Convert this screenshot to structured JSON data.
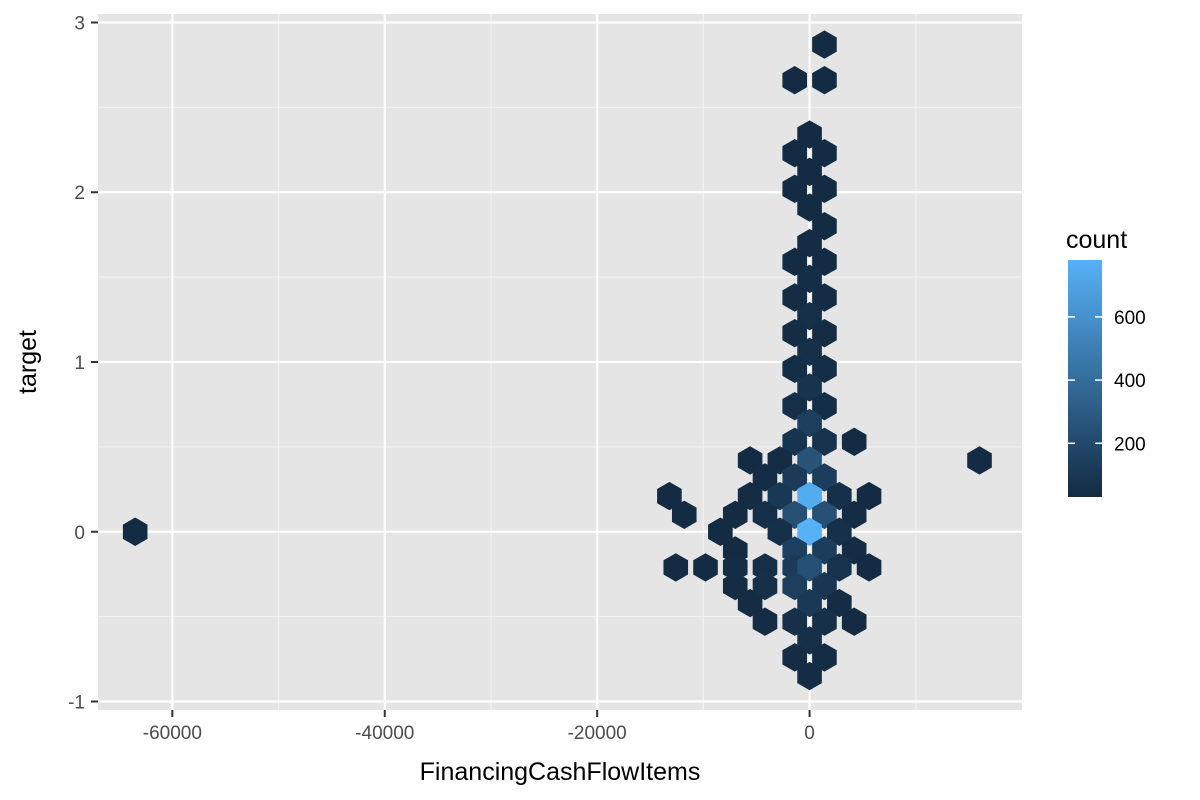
{
  "chart_data": {
    "type": "hexbin",
    "title": "",
    "xlabel": "FinancingCashFlowItems",
    "ylabel": "target",
    "xlim": [
      -67000,
      20000
    ],
    "ylim": [
      -1.05,
      3.05
    ],
    "x_ticks": [
      -60000,
      -40000,
      -20000,
      0
    ],
    "x_tick_labels": [
      "-60000",
      "-40000",
      "-20000",
      "0"
    ],
    "x_minor_ticks": [
      -50000,
      -30000,
      -10000,
      10000
    ],
    "y_ticks": [
      -1,
      0,
      1,
      2,
      3
    ],
    "y_tick_labels": [
      "-1",
      "0",
      "1",
      "2",
      "3"
    ],
    "y_minor_ticks": [
      -0.5,
      0.5,
      1.5,
      2.5
    ],
    "grid": true,
    "panel_background": "#e5e5e5",
    "legend": {
      "title": "count",
      "position": "right",
      "min": 30,
      "max": 780,
      "ticks": [
        200,
        400,
        600
      ],
      "tick_labels": [
        "200",
        "400",
        "600"
      ],
      "color_low": "#132b43",
      "color_high": "#56b1f7"
    },
    "hexagons": [
      {
        "x": 1400,
        "y": 2.87,
        "count": 30
      },
      {
        "x": -1400,
        "y": 2.66,
        "count": 30
      },
      {
        "x": 1400,
        "y": 2.66,
        "count": 30
      },
      {
        "x": 0,
        "y": 2.34,
        "count": 35
      },
      {
        "x": -1400,
        "y": 2.23,
        "count": 35
      },
      {
        "x": 1400,
        "y": 2.23,
        "count": 35
      },
      {
        "x": 0,
        "y": 2.12,
        "count": 35
      },
      {
        "x": -1400,
        "y": 2.02,
        "count": 35
      },
      {
        "x": 1400,
        "y": 2.02,
        "count": 35
      },
      {
        "x": 0,
        "y": 1.91,
        "count": 35
      },
      {
        "x": 1400,
        "y": 1.8,
        "count": 35
      },
      {
        "x": 0,
        "y": 1.7,
        "count": 40
      },
      {
        "x": -1400,
        "y": 1.59,
        "count": 35
      },
      {
        "x": 1400,
        "y": 1.59,
        "count": 35
      },
      {
        "x": 0,
        "y": 1.49,
        "count": 45
      },
      {
        "x": -1400,
        "y": 1.38,
        "count": 40
      },
      {
        "x": 1400,
        "y": 1.38,
        "count": 40
      },
      {
        "x": 0,
        "y": 1.27,
        "count": 50
      },
      {
        "x": -1400,
        "y": 1.17,
        "count": 40
      },
      {
        "x": 1400,
        "y": 1.17,
        "count": 40
      },
      {
        "x": 0,
        "y": 1.06,
        "count": 60
      },
      {
        "x": -1400,
        "y": 0.96,
        "count": 45
      },
      {
        "x": 1400,
        "y": 0.96,
        "count": 45
      },
      {
        "x": 0,
        "y": 0.85,
        "count": 80
      },
      {
        "x": -1400,
        "y": 0.74,
        "count": 50
      },
      {
        "x": 1400,
        "y": 0.74,
        "count": 45
      },
      {
        "x": 0,
        "y": 0.64,
        "count": 140
      },
      {
        "x": -1400,
        "y": 0.53,
        "count": 80
      },
      {
        "x": 1400,
        "y": 0.53,
        "count": 70
      },
      {
        "x": 4200,
        "y": 0.53,
        "count": 30
      },
      {
        "x": -5600,
        "y": 0.42,
        "count": 30
      },
      {
        "x": -2800,
        "y": 0.42,
        "count": 40
      },
      {
        "x": 0,
        "y": 0.42,
        "count": 260
      },
      {
        "x": 16000,
        "y": 0.42,
        "count": 30
      },
      {
        "x": -4200,
        "y": 0.32,
        "count": 40
      },
      {
        "x": -1400,
        "y": 0.32,
        "count": 120
      },
      {
        "x": 1400,
        "y": 0.32,
        "count": 130
      },
      {
        "x": -13200,
        "y": 0.21,
        "count": 30
      },
      {
        "x": -5600,
        "y": 0.21,
        "count": 40
      },
      {
        "x": -2800,
        "y": 0.21,
        "count": 100
      },
      {
        "x": 0,
        "y": 0.21,
        "count": 750
      },
      {
        "x": 2800,
        "y": 0.21,
        "count": 60
      },
      {
        "x": 5600,
        "y": 0.21,
        "count": 30
      },
      {
        "x": -11800,
        "y": 0.1,
        "count": 30
      },
      {
        "x": -7000,
        "y": 0.1,
        "count": 30
      },
      {
        "x": -4200,
        "y": 0.1,
        "count": 50
      },
      {
        "x": -1400,
        "y": 0.1,
        "count": 230
      },
      {
        "x": 1400,
        "y": 0.1,
        "count": 240
      },
      {
        "x": 4200,
        "y": 0.1,
        "count": 40
      },
      {
        "x": -63500,
        "y": 0.0,
        "count": 30
      },
      {
        "x": -8400,
        "y": 0.0,
        "count": 30
      },
      {
        "x": -2800,
        "y": 0.0,
        "count": 60
      },
      {
        "x": 0,
        "y": 0.0,
        "count": 780
      },
      {
        "x": 2800,
        "y": 0.0,
        "count": 60
      },
      {
        "x": -7000,
        "y": -0.11,
        "count": 30
      },
      {
        "x": -1400,
        "y": -0.11,
        "count": 150
      },
      {
        "x": 1400,
        "y": -0.11,
        "count": 130
      },
      {
        "x": 4200,
        "y": -0.11,
        "count": 40
      },
      {
        "x": -12600,
        "y": -0.21,
        "count": 30
      },
      {
        "x": -9800,
        "y": -0.21,
        "count": 30
      },
      {
        "x": -7000,
        "y": -0.21,
        "count": 40
      },
      {
        "x": -4200,
        "y": -0.21,
        "count": 50
      },
      {
        "x": -1400,
        "y": -0.21,
        "count": 120
      },
      {
        "x": 0,
        "y": -0.21,
        "count": 230
      },
      {
        "x": 2800,
        "y": -0.21,
        "count": 70
      },
      {
        "x": 5600,
        "y": -0.21,
        "count": 30
      },
      {
        "x": -7000,
        "y": -0.32,
        "count": 40
      },
      {
        "x": -4200,
        "y": -0.32,
        "count": 60
      },
      {
        "x": -1400,
        "y": -0.32,
        "count": 140
      },
      {
        "x": 1400,
        "y": -0.32,
        "count": 90
      },
      {
        "x": -5600,
        "y": -0.42,
        "count": 40
      },
      {
        "x": 0,
        "y": -0.42,
        "count": 110
      },
      {
        "x": 2800,
        "y": -0.42,
        "count": 40
      },
      {
        "x": -4200,
        "y": -0.53,
        "count": 40
      },
      {
        "x": -1400,
        "y": -0.53,
        "count": 60
      },
      {
        "x": 1400,
        "y": -0.53,
        "count": 60
      },
      {
        "x": 4200,
        "y": -0.53,
        "count": 30
      },
      {
        "x": 0,
        "y": -0.64,
        "count": 60
      },
      {
        "x": -1400,
        "y": -0.74,
        "count": 40
      },
      {
        "x": 1400,
        "y": -0.74,
        "count": 40
      },
      {
        "x": 0,
        "y": -0.85,
        "count": 40
      }
    ]
  }
}
